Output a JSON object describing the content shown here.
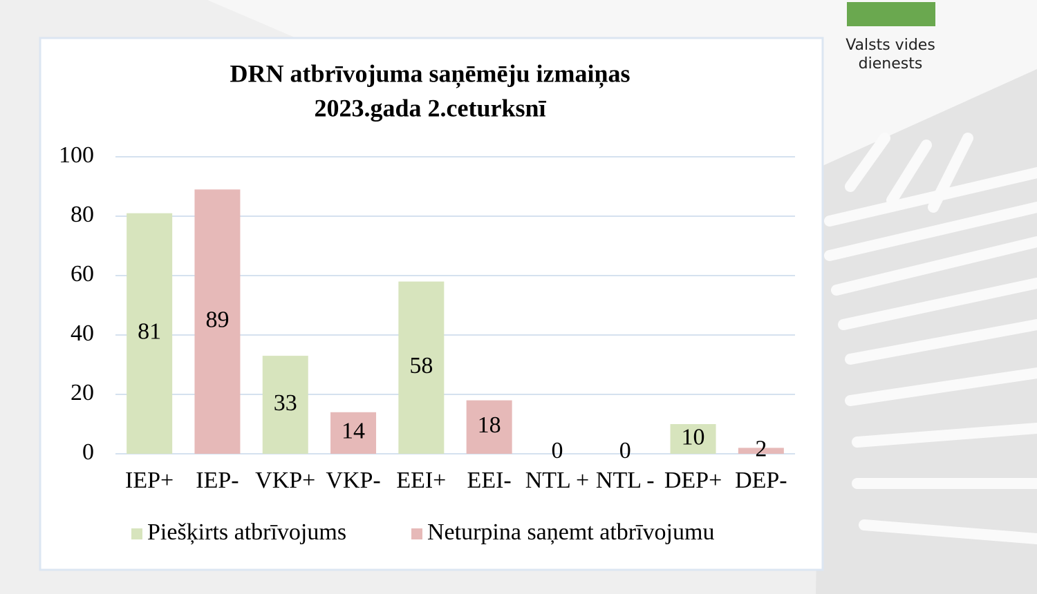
{
  "logo": {
    "text": "Valsts vides dienests"
  },
  "chart_data": {
    "type": "bar",
    "title": [
      "DRN atbrīvojuma saņēmēju izmaiņas",
      "2023.gada 2.ceturksnī"
    ],
    "categories": [
      "IEP+",
      "IEP-",
      "VKP+",
      "VKP-",
      "EEI+",
      "EEI-",
      "NTL +",
      "NTL -",
      "DEP+",
      "DEP-"
    ],
    "series": [
      {
        "name": "Piešķirts atbrīvojums",
        "color": "#d7e4bd",
        "values": [
          81,
          null,
          33,
          null,
          58,
          null,
          0,
          null,
          10,
          null
        ]
      },
      {
        "name": "Neturpina saņemt atbrīvojumu",
        "color": "#e6b9b8",
        "values": [
          null,
          89,
          null,
          14,
          null,
          18,
          null,
          0,
          null,
          2
        ]
      }
    ],
    "ylim": [
      0,
      100
    ],
    "yticks": [
      0,
      20,
      40,
      60,
      80,
      100
    ],
    "grid": true,
    "legend": "bottom"
  }
}
